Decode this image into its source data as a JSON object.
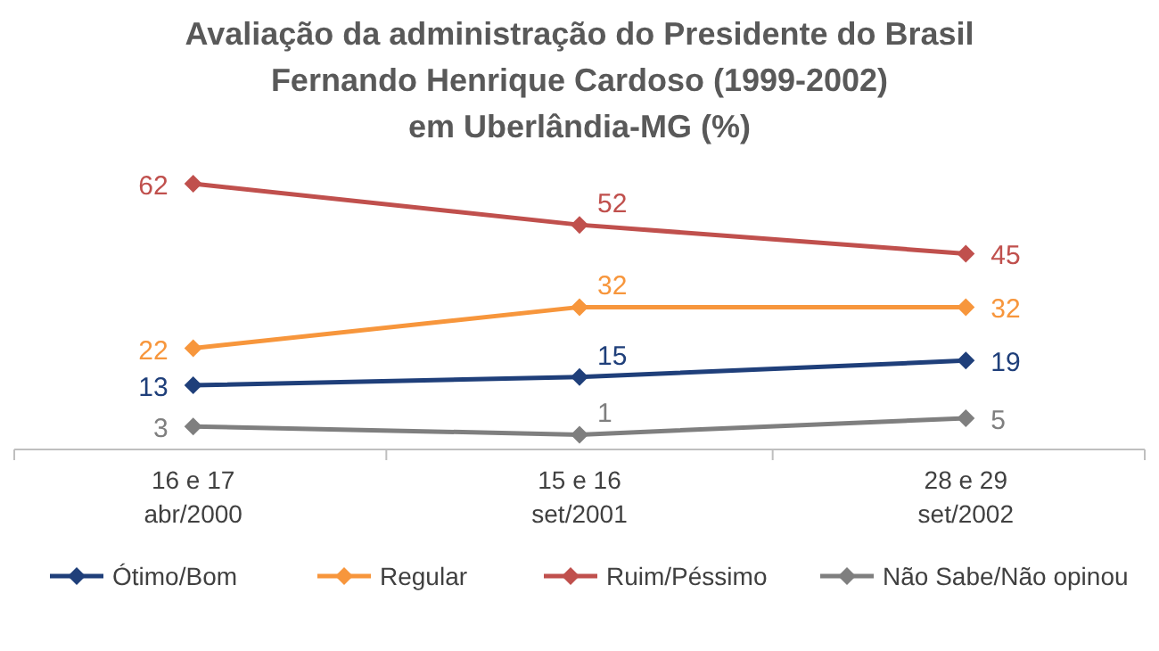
{
  "chart_data": {
    "type": "line",
    "title": "Avaliação da administração do Presidente do Brasil\nFernando Henrique Cardoso (1999-2002)\nem Uberlândia-MG (%)",
    "categories": [
      "16 e 17\nabr/2000",
      "15 e 16\nset/2001",
      "28 e 29\nset/2002"
    ],
    "series": [
      {
        "name": "Ótimo/Bom",
        "color": "#1f3f7a",
        "values": [
          13,
          15,
          19
        ]
      },
      {
        "name": "Regular",
        "color": "#f7963c",
        "values": [
          22,
          32,
          32
        ]
      },
      {
        "name": "Ruim/Péssimo",
        "color": "#c0504d",
        "values": [
          62,
          52,
          45
        ]
      },
      {
        "name": "Não Sabe/Não opinou",
        "color": "#7f7f7f",
        "values": [
          3,
          1,
          5
        ]
      }
    ],
    "data_labels": true,
    "marker": "diamond",
    "line_style": "solid",
    "legend": "bottom",
    "grid": false
  }
}
